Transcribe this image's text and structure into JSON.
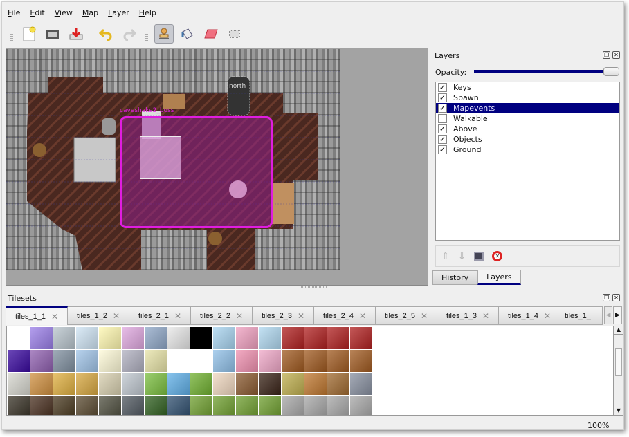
{
  "menu": [
    "File",
    "Edit",
    "View",
    "Map",
    "Layer",
    "Help"
  ],
  "toolbar": {
    "icons": [
      "new-icon",
      "open-icon",
      "save-icon",
      "undo-icon",
      "redo-icon",
      "stamp-brush-icon",
      "bucket-fill-icon",
      "eraser-icon",
      "rect-select-icon"
    ],
    "active": "stamp-brush-icon"
  },
  "map": {
    "object_label": "caveshake2_boss",
    "north_label": "north",
    "selection_color": "#e01de0"
  },
  "layers_dock": {
    "title": "Layers",
    "opacity_label": "Opacity:",
    "opacity": 1.0,
    "layers": [
      {
        "name": "Keys",
        "visible": true
      },
      {
        "name": "Spawn",
        "visible": true
      },
      {
        "name": "Mapevents",
        "visible": true,
        "selected": true
      },
      {
        "name": "Walkable",
        "visible": false
      },
      {
        "name": "Above",
        "visible": true
      },
      {
        "name": "Objects",
        "visible": true
      },
      {
        "name": "Ground",
        "visible": true
      }
    ],
    "tabs": [
      "History",
      "Layers"
    ],
    "active_tab": "Layers"
  },
  "tilesets_dock": {
    "title": "Tilesets",
    "tabs": [
      "tiles_1_1",
      "tiles_1_2",
      "tiles_2_1",
      "tiles_2_2",
      "tiles_2_3",
      "tiles_2_4",
      "tiles_2_5",
      "tiles_1_3",
      "tiles_1_4",
      "tiles_1_"
    ],
    "active_tab": "tiles_1_1"
  },
  "status": {
    "zoom": "100%"
  },
  "colors": {
    "accent": "#000080",
    "floor": "#4a2820"
  }
}
